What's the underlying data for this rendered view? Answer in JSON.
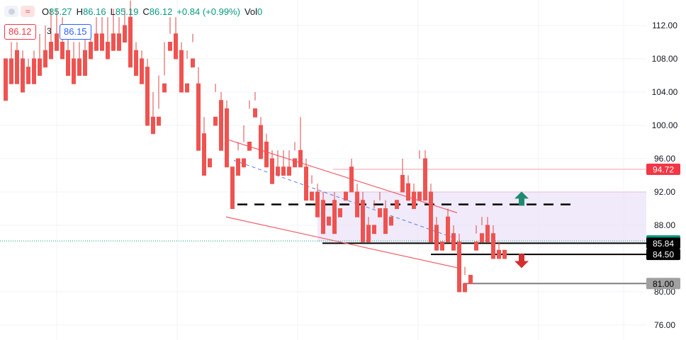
{
  "header": {
    "o_label": "O",
    "o_value": "85.27",
    "h_label": "H",
    "h_value": "86.16",
    "l_label": "L",
    "l_value": "85.19",
    "c_label": "C",
    "c_value": "86.12",
    "change": "+0.84 (+0.99%)",
    "vol_label": "Vol",
    "vol_value": "0",
    "wave_icon": "≈",
    "sell_price": "86.12",
    "quantity": "3",
    "buy_price": "86.15"
  },
  "chart_data": {
    "type": "candlestick",
    "y_axis_ticks": [
      "112.00",
      "108.00",
      "104.00",
      "100.00",
      "96.00",
      "92.00",
      "88.00",
      "80.00",
      "76.00"
    ],
    "ylim": [
      73,
      116
    ],
    "price_labels": [
      {
        "text": "94.72",
        "value": 94.72,
        "bg": "#f23645",
        "fg": "#ffffff"
      },
      {
        "text": "86.12",
        "value": 86.12,
        "bg": "#089981",
        "fg": "#ffffff"
      },
      {
        "text": "85.84",
        "value": 85.84,
        "bg": "#000000",
        "fg": "#ffffff"
      },
      {
        "text": "84.50",
        "value": 84.5,
        "bg": "#000000",
        "fg": "#ffffff"
      },
      {
        "text": "81.00",
        "value": 81.0,
        "bg": "#a0a0a0",
        "fg": "#000000"
      }
    ],
    "current_price": 86.12,
    "horizontal_levels": [
      {
        "value": 94.72,
        "color": "#f5a0a8",
        "style": "solid"
      },
      {
        "value": 90.5,
        "color": "#000000",
        "style": "dashed"
      },
      {
        "value": 85.84,
        "color": "#000000",
        "style": "solid"
      },
      {
        "value": 84.5,
        "color": "#000000",
        "style": "solid"
      },
      {
        "value": 81.0,
        "color": "#808080",
        "style": "solid"
      }
    ],
    "zone": {
      "top": 92.0,
      "bottom": 86.0,
      "color": "#ece3f8"
    },
    "channel": {
      "upper": [
        [
          321,
          98.3
        ],
        [
          645,
          89.5
        ]
      ],
      "lower": [
        [
          319,
          89.0
        ],
        [
          650,
          82.8
        ]
      ],
      "mid": [
        [
          330,
          95.8
        ],
        [
          640,
          86.5
        ]
      ],
      "color": "#f0606c"
    },
    "arrows": [
      {
        "direction": "up",
        "x": 736,
        "value": 91.2,
        "color": "#1f8a70"
      },
      {
        "direction": "down",
        "x": 736,
        "value": 83.7,
        "color": "#d32f2f"
      }
    ],
    "candles": [
      [
        8,
        108,
        107,
        104,
        103
      ],
      [
        16,
        108,
        110,
        106,
        105
      ],
      [
        24,
        109,
        110,
        106,
        105
      ],
      [
        32,
        108,
        109,
        107,
        104
      ],
      [
        40,
        107,
        108,
        106,
        105
      ],
      [
        48,
        108,
        109,
        106,
        105
      ],
      [
        56,
        108,
        111,
        107,
        106
      ],
      [
        64,
        109,
        112,
        108,
        107
      ],
      [
        72,
        110,
        114,
        109,
        108
      ],
      [
        80,
        111,
        114,
        110,
        109
      ],
      [
        88,
        110,
        113,
        108,
        108
      ],
      [
        96,
        109,
        112,
        107,
        106
      ],
      [
        104,
        108,
        110,
        106,
        105
      ],
      [
        112,
        108,
        110,
        107,
        106
      ],
      [
        120,
        109,
        111,
        107,
        106
      ],
      [
        128,
        110,
        112,
        109,
        108
      ],
      [
        136,
        111,
        113,
        110,
        109
      ],
      [
        144,
        111,
        113,
        110,
        109
      ],
      [
        152,
        110,
        113,
        109,
        108
      ],
      [
        160,
        111,
        114,
        110,
        109
      ],
      [
        168,
        111,
        113,
        110,
        109
      ],
      [
        176,
        112,
        114,
        111,
        110
      ],
      [
        184,
        113,
        115,
        109,
        107
      ],
      [
        192,
        109,
        110,
        107,
        106
      ],
      [
        200,
        108,
        109,
        106,
        105
      ],
      [
        208,
        107,
        108,
        101,
        100
      ],
      [
        216,
        101,
        104,
        100,
        99
      ],
      [
        224,
        101,
        106,
        102,
        100
      ],
      [
        232,
        105,
        110,
        106,
        104
      ],
      [
        240,
        110,
        113,
        111,
        109
      ],
      [
        248,
        111,
        113,
        109,
        108
      ],
      [
        256,
        109,
        110,
        105,
        104
      ],
      [
        264,
        105,
        109,
        108,
        104
      ],
      [
        272,
        108,
        111,
        110,
        107
      ],
      [
        280,
        105,
        107,
        99,
        97
      ],
      [
        288,
        99,
        101,
        96,
        94
      ],
      [
        296,
        96,
        101,
        101,
        95
      ],
      [
        304,
        101,
        105,
        104,
        100
      ],
      [
        312,
        103,
        104,
        98,
        97
      ],
      [
        320,
        102,
        103,
        96,
        95
      ],
      [
        328,
        95,
        97,
        97,
        90
      ],
      [
        336,
        96,
        98,
        97,
        94
      ],
      [
        344,
        96,
        100,
        98,
        95
      ],
      [
        352,
        98,
        103,
        102,
        97
      ],
      [
        360,
        102,
        104,
        103,
        101
      ],
      [
        368,
        100,
        101,
        98,
        96
      ],
      [
        376,
        98,
        99,
        96,
        95
      ],
      [
        384,
        96,
        97,
        94,
        93
      ],
      [
        392,
        95,
        97,
        95,
        94
      ],
      [
        400,
        95,
        97,
        95,
        94
      ],
      [
        408,
        95,
        97,
        95,
        94
      ],
      [
        416,
        96,
        98,
        97,
        95
      ],
      [
        424,
        97,
        101,
        96,
        95
      ],
      [
        432,
        95,
        96,
        92,
        91
      ],
      [
        440,
        92,
        94,
        93,
        91
      ],
      [
        448,
        92,
        93,
        91,
        89
      ],
      [
        456,
        91,
        92,
        88,
        87
      ],
      [
        464,
        89,
        91,
        91,
        88
      ],
      [
        472,
        91,
        92,
        88,
        87
      ],
      [
        480,
        90,
        92,
        92,
        89
      ],
      [
        488,
        92,
        94,
        94,
        91
      ],
      [
        496,
        95,
        96,
        93,
        92
      ],
      [
        504,
        92,
        93,
        90,
        89
      ],
      [
        512,
        91,
        92,
        87,
        86
      ],
      [
        520,
        88,
        89,
        87,
        86
      ],
      [
        528,
        88,
        91,
        90,
        87
      ],
      [
        536,
        90,
        92,
        91,
        89
      ],
      [
        544,
        90,
        91,
        88,
        87
      ],
      [
        552,
        89,
        91,
        91,
        88
      ],
      [
        560,
        91,
        94,
        94,
        90
      ],
      [
        568,
        94,
        96,
        93,
        92
      ],
      [
        576,
        93,
        94,
        92,
        91
      ],
      [
        584,
        92,
        93,
        91,
        90
      ],
      [
        592,
        92,
        97,
        96,
        91
      ],
      [
        600,
        96,
        97,
        92,
        91
      ],
      [
        608,
        92,
        93,
        88,
        86
      ],
      [
        616,
        88,
        89,
        86,
        85
      ],
      [
        624,
        86,
        89,
        89,
        85
      ],
      [
        632,
        89,
        90,
        87,
        86
      ],
      [
        640,
        87,
        88,
        86,
        85
      ],
      [
        648,
        86,
        87,
        81,
        80
      ],
      [
        656,
        81,
        83,
        82,
        80
      ],
      [
        664,
        82,
        86,
        86,
        81
      ],
      [
        672,
        86,
        88,
        87,
        85
      ],
      [
        680,
        87,
        89,
        88,
        86
      ],
      [
        688,
        88,
        89,
        87,
        86
      ],
      [
        696,
        87,
        88,
        85,
        84
      ],
      [
        704,
        85,
        86,
        85,
        84
      ],
      [
        712,
        85,
        86,
        86,
        84
      ]
    ]
  }
}
